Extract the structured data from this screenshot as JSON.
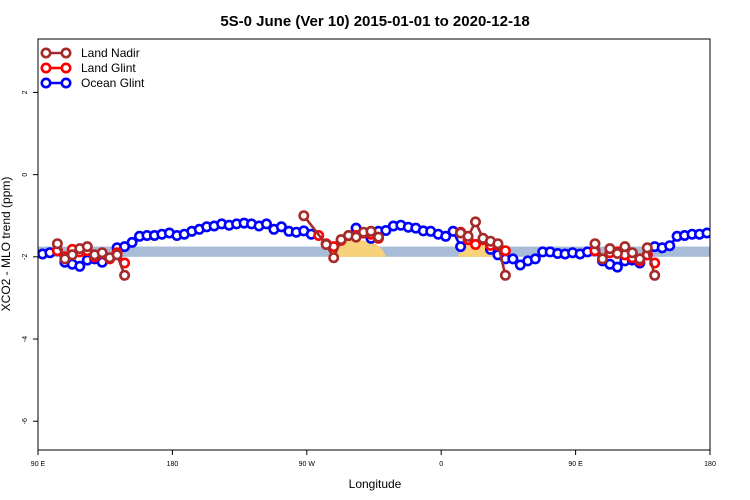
{
  "chart_data": {
    "type": "line",
    "title": "5S-0 June (Ver 10)   2015-01-01 to 2020-12-18",
    "xlabel": "Longitude",
    "ylabel": "XCO2 - MLO trend (ppm)",
    "xlim": [
      0,
      450
    ],
    "ylim": [
      -6.7,
      3.3
    ],
    "x_ticks": [
      {
        "value": 0,
        "label": "90 E"
      },
      {
        "value": 90,
        "label": "180"
      },
      {
        "value": 180,
        "label": "90 W"
      },
      {
        "value": 270,
        "label": "0"
      },
      {
        "value": 360,
        "label": "90 E"
      },
      {
        "value": 450,
        "label": "180"
      }
    ],
    "y_ticks": [
      {
        "value": 2,
        "label": "2"
      },
      {
        "value": 0,
        "label": "0"
      },
      {
        "value": -2,
        "label": "-2"
      },
      {
        "value": -4,
        "label": "-4"
      },
      {
        "value": -6,
        "label": "-6"
      }
    ],
    "band": {
      "y_low": -2.0,
      "y_high": -1.75,
      "color": "#a8bcd8"
    },
    "land_regions": [
      {
        "x_start": 194,
        "x_end": 233,
        "color": "#f8d27a"
      },
      {
        "x_start": 281,
        "x_end": 315,
        "color": "#f8d27a"
      }
    ],
    "legend": {
      "position": "top-left",
      "entries": [
        {
          "label": "Land Nadir",
          "color": "#a52a2a"
        },
        {
          "label": "Land Glint",
          "color": "#ff0000"
        },
        {
          "label": "Ocean Glint",
          "color": "#0000ff"
        }
      ]
    },
    "series": [
      {
        "name": "Ocean Glint",
        "color": "#0000ff",
        "points": [
          [
            3,
            -1.93
          ],
          [
            8,
            -1.9
          ],
          [
            13,
            -1.85
          ],
          [
            18,
            -2.13
          ],
          [
            23,
            -2.18
          ],
          [
            28,
            -2.23
          ],
          [
            33,
            -2.08
          ],
          [
            38,
            -2.05
          ],
          [
            43,
            -2.13
          ],
          [
            48,
            -2.03
          ],
          [
            53,
            -1.78
          ],
          [
            58,
            -1.75
          ],
          [
            63,
            -1.65
          ],
          [
            68,
            -1.5
          ],
          [
            73,
            -1.48
          ],
          [
            78,
            -1.48
          ],
          [
            83,
            -1.45
          ],
          [
            88,
            -1.42
          ],
          [
            93,
            -1.48
          ],
          [
            98,
            -1.45
          ],
          [
            103,
            -1.38
          ],
          [
            108,
            -1.33
          ],
          [
            113,
            -1.27
          ],
          [
            118,
            -1.25
          ],
          [
            123,
            -1.2
          ],
          [
            128,
            -1.23
          ],
          [
            133,
            -1.2
          ],
          [
            138,
            -1.18
          ],
          [
            143,
            -1.2
          ],
          [
            148,
            -1.25
          ],
          [
            153,
            -1.2
          ],
          [
            158,
            -1.33
          ],
          [
            163,
            -1.27
          ],
          [
            168,
            -1.38
          ],
          [
            173,
            -1.4
          ],
          [
            178,
            -1.37
          ],
          [
            183,
            -1.45
          ],
          [
            213,
            -1.3
          ],
          [
            218,
            -1.42
          ],
          [
            223,
            -1.55
          ],
          [
            228,
            -1.38
          ],
          [
            233,
            -1.36
          ],
          [
            238,
            -1.25
          ],
          [
            243,
            -1.23
          ],
          [
            248,
            -1.28
          ],
          [
            253,
            -1.3
          ],
          [
            258,
            -1.37
          ],
          [
            263,
            -1.38
          ],
          [
            268,
            -1.45
          ],
          [
            273,
            -1.5
          ],
          [
            278,
            -1.38
          ],
          [
            283,
            -1.75
          ],
          [
            303,
            -1.82
          ],
          [
            308,
            -1.95
          ],
          [
            313,
            -2.05
          ],
          [
            318,
            -2.05
          ],
          [
            323,
            -2.2
          ],
          [
            328,
            -2.1
          ],
          [
            333,
            -2.05
          ],
          [
            338,
            -1.88
          ],
          [
            343,
            -1.88
          ],
          [
            348,
            -1.92
          ],
          [
            353,
            -1.93
          ],
          [
            358,
            -1.9
          ],
          [
            363,
            -1.93
          ],
          [
            368,
            -1.88
          ],
          [
            373,
            -1.85
          ],
          [
            378,
            -2.1
          ],
          [
            383,
            -2.18
          ],
          [
            388,
            -2.25
          ],
          [
            393,
            -2.1
          ],
          [
            398,
            -2.08
          ],
          [
            403,
            -2.15
          ],
          [
            408,
            -1.95
          ],
          [
            413,
            -1.75
          ],
          [
            418,
            -1.78
          ],
          [
            423,
            -1.73
          ],
          [
            428,
            -1.5
          ],
          [
            433,
            -1.48
          ],
          [
            438,
            -1.45
          ],
          [
            443,
            -1.45
          ],
          [
            448,
            -1.42
          ]
        ]
      },
      {
        "name": "Land Glint",
        "color": "#ff0000",
        "segments": [
          [
            [
              13,
              -1.85
            ],
            [
              18,
              -2.0
            ],
            [
              23,
              -1.82
            ],
            [
              28,
              -1.88
            ],
            [
              33,
              -1.85
            ],
            [
              38,
              -2.0
            ],
            [
              43,
              -1.92
            ],
            [
              48,
              -2.05
            ],
            [
              53,
              -1.9
            ],
            [
              58,
              -2.15
            ]
          ],
          [
            [
              188,
              -1.48
            ],
            [
              193,
              -1.68
            ],
            [
              198,
              -1.75
            ],
            [
              203,
              -1.6
            ],
            [
              208,
              -1.48
            ],
            [
              213,
              -1.48
            ],
            [
              218,
              -1.42
            ],
            [
              223,
              -1.45
            ],
            [
              228,
              -1.55
            ]
          ],
          [
            [
              283,
              -1.4
            ],
            [
              288,
              -1.58
            ],
            [
              293,
              -1.7
            ],
            [
              298,
              -1.58
            ],
            [
              303,
              -1.72
            ],
            [
              308,
              -1.72
            ],
            [
              313,
              -1.85
            ]
          ],
          [
            [
              373,
              -1.85
            ],
            [
              378,
              -2.05
            ],
            [
              383,
              -1.9
            ],
            [
              388,
              -1.88
            ],
            [
              393,
              -1.95
            ],
            [
              398,
              -2.02
            ],
            [
              403,
              -2.1
            ],
            [
              408,
              -1.95
            ],
            [
              413,
              -2.15
            ]
          ]
        ]
      },
      {
        "name": "Land Nadir",
        "color": "#a52a2a",
        "segments": [
          [
            [
              13,
              -1.68
            ],
            [
              18,
              -2.05
            ],
            [
              23,
              -1.95
            ],
            [
              28,
              -1.8
            ],
            [
              33,
              -1.75
            ],
            [
              38,
              -1.95
            ],
            [
              43,
              -1.9
            ],
            [
              48,
              -2.02
            ],
            [
              53,
              -1.95
            ],
            [
              58,
              -2.45
            ]
          ],
          [
            [
              178,
              -1.0
            ],
            [
              193,
              -1.7
            ],
            [
              198,
              -2.02
            ],
            [
              203,
              -1.58
            ],
            [
              208,
              -1.48
            ],
            [
              213,
              -1.52
            ],
            [
              218,
              -1.4
            ],
            [
              223,
              -1.38
            ],
            [
              228,
              -1.52
            ]
          ],
          [
            [
              283,
              -1.42
            ],
            [
              288,
              -1.5
            ],
            [
              293,
              -1.15
            ],
            [
              298,
              -1.55
            ],
            [
              303,
              -1.62
            ],
            [
              308,
              -1.68
            ],
            [
              313,
              -2.45
            ]
          ],
          [
            [
              373,
              -1.68
            ],
            [
              378,
              -2.05
            ],
            [
              383,
              -1.8
            ],
            [
              388,
              -1.92
            ],
            [
              393,
              -1.75
            ],
            [
              398,
              -1.9
            ],
            [
              403,
              -2.05
            ],
            [
              408,
              -1.78
            ],
            [
              413,
              -2.45
            ]
          ]
        ]
      }
    ]
  }
}
